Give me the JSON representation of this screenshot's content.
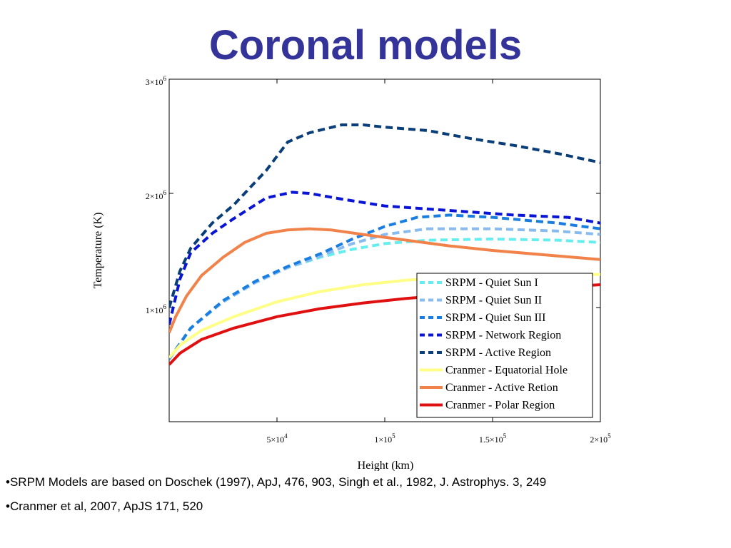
{
  "slide": {
    "title": "Coronal models",
    "notes": [
      "•SRPM Models are based on Doschek (1997), ApJ, 476, 903, Singh et al., 1982, J. Astrophys. 3, 249",
      "•Cranmer et al, 2007, ApJS 171, 520"
    ]
  },
  "colors": {
    "title": "#333399",
    "quiet_sun_i": "#66eeee",
    "quiet_sun_ii": "#88bbf0",
    "quiet_sun_iii": "#1a7ee0",
    "network_region": "#0a14d4",
    "active_region_srpm": "#0a3e78",
    "equatorial_hole": "#ffff88",
    "active_region_cranmer": "#f0824a",
    "polar_region": "#e01010"
  },
  "chart_data": {
    "type": "line",
    "title": "",
    "xlabel": "Height (km)",
    "ylabel": "Temperature (K)",
    "xlim": [
      0,
      200000
    ],
    "ylim": [
      0,
      3000000
    ],
    "xticks": [
      {
        "value": 50000,
        "mantissa": "5",
        "sep": "×",
        "base": "10",
        "exp": "4"
      },
      {
        "value": 100000,
        "mantissa": "1",
        "sep": "×",
        "base": "10",
        "exp": "5"
      },
      {
        "value": 150000,
        "mantissa": "1.5",
        "sep": "×",
        "base": "10",
        "exp": "5"
      },
      {
        "value": 200000,
        "mantissa": "2",
        "sep": "×",
        "base": "10",
        "exp": "5"
      }
    ],
    "yticks": [
      {
        "value": 1000000,
        "mantissa": "1",
        "sep": "×",
        "base": "10",
        "exp": "6"
      },
      {
        "value": 2000000,
        "mantissa": "2",
        "sep": "×",
        "base": "10",
        "exp": "6"
      },
      {
        "value": 3000000,
        "mantissa": "3",
        "sep": "×",
        "base": "10",
        "exp": "6"
      }
    ],
    "grid": false,
    "legend_position": "bottom-right",
    "series": [
      {
        "name": "SRPM - Quiet Sun I",
        "color": "#66eeee",
        "style": "dashed",
        "x": [
          0,
          10000,
          25000,
          40000,
          55000,
          70000,
          85000,
          100000,
          120000,
          150000,
          180000,
          200000
        ],
        "y": [
          550000,
          820000,
          1050000,
          1220000,
          1350000,
          1440000,
          1510000,
          1560000,
          1590000,
          1600000,
          1590000,
          1570000
        ]
      },
      {
        "name": "SRPM - Quiet Sun II",
        "color": "#88bbf0",
        "style": "dashed",
        "x": [
          0,
          10000,
          25000,
          40000,
          55000,
          70000,
          85000,
          100000,
          120000,
          150000,
          180000,
          200000
        ],
        "y": [
          550000,
          820000,
          1050000,
          1220000,
          1350000,
          1450000,
          1560000,
          1640000,
          1690000,
          1690000,
          1670000,
          1640000
        ]
      },
      {
        "name": "SRPM - Quiet Sun III",
        "color": "#1a7ee0",
        "style": "dashed",
        "x": [
          0,
          10000,
          25000,
          40000,
          55000,
          70000,
          85000,
          100000,
          115000,
          130000,
          150000,
          180000,
          200000
        ],
        "y": [
          550000,
          820000,
          1060000,
          1230000,
          1360000,
          1470000,
          1600000,
          1710000,
          1790000,
          1810000,
          1790000,
          1740000,
          1690000
        ]
      },
      {
        "name": "SRPM - Network Region",
        "color": "#0a14d4",
        "style": "dashed",
        "x": [
          0,
          5000,
          10000,
          20000,
          30000,
          45000,
          57000,
          65000,
          80000,
          100000,
          130000,
          160000,
          185000,
          200000
        ],
        "y": [
          850000,
          1250000,
          1480000,
          1650000,
          1780000,
          1960000,
          2010000,
          2000000,
          1950000,
          1890000,
          1850000,
          1810000,
          1790000,
          1740000
        ]
      },
      {
        "name": "SRPM - Active Region",
        "color": "#0a3e78",
        "style": "dashed",
        "x": [
          0,
          5000,
          10000,
          20000,
          30000,
          45000,
          55000,
          65000,
          80000,
          90000,
          100000,
          120000,
          140000,
          160000,
          180000,
          200000
        ],
        "y": [
          1000000,
          1320000,
          1520000,
          1740000,
          1900000,
          2200000,
          2450000,
          2530000,
          2600000,
          2600000,
          2580000,
          2550000,
          2480000,
          2420000,
          2350000,
          2270000
        ]
      },
      {
        "name": "Cranmer - Equatorial Hole",
        "color": "#ffff88",
        "style": "solid",
        "x": [
          0,
          5000,
          15000,
          30000,
          50000,
          70000,
          90000,
          110000,
          130000,
          150000,
          175000,
          200000
        ],
        "y": [
          560000,
          670000,
          800000,
          920000,
          1050000,
          1140000,
          1200000,
          1240000,
          1260000,
          1280000,
          1290000,
          1290000
        ]
      },
      {
        "name": "Cranmer - Active Retion",
        "color": "#f0824a",
        "style": "solid",
        "x": [
          0,
          3000,
          8000,
          15000,
          25000,
          35000,
          45000,
          55000,
          65000,
          75000,
          90000,
          110000,
          130000,
          150000,
          175000,
          200000
        ],
        "y": [
          780000,
          920000,
          1100000,
          1280000,
          1440000,
          1570000,
          1650000,
          1680000,
          1690000,
          1680000,
          1640000,
          1590000,
          1540000,
          1500000,
          1460000,
          1420000
        ]
      },
      {
        "name": "Cranmer - Polar Region",
        "color": "#e01010",
        "style": "solid",
        "x": [
          0,
          5000,
          15000,
          30000,
          50000,
          70000,
          90000,
          110000,
          130000,
          150000,
          175000,
          200000
        ],
        "y": [
          500000,
          600000,
          720000,
          820000,
          920000,
          990000,
          1040000,
          1080000,
          1110000,
          1140000,
          1170000,
          1200000
        ]
      }
    ]
  }
}
